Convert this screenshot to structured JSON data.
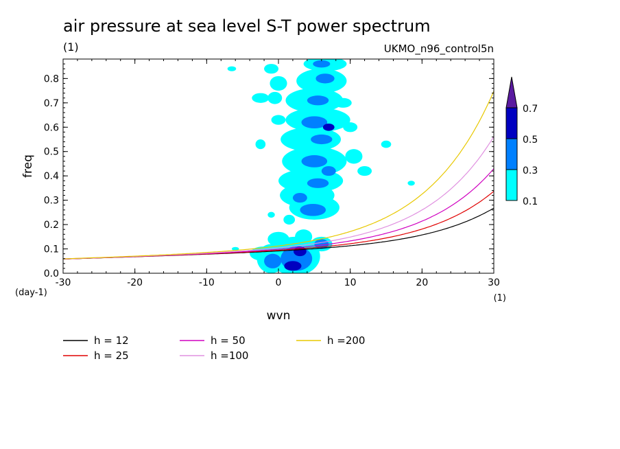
{
  "chart_data": {
    "type": "heatmap",
    "title": "air pressure at sea level S-T power spectrum",
    "units_label": "(1)",
    "dataset_label": "UKMO_n96_control5n",
    "xlabel": "wvn",
    "ylabel": "freq",
    "x_unit_label": "(1)",
    "y_unit_label": "(day-1)",
    "xlim": [
      -30,
      30
    ],
    "ylim": [
      0.0,
      0.88
    ],
    "x_ticks": [
      "-30",
      "-20",
      "-10",
      "0",
      "10",
      "20",
      "30"
    ],
    "x_tick_values": [
      -30,
      -20,
      -10,
      0,
      10,
      20,
      30
    ],
    "y_ticks": [
      "0.0",
      "0.1",
      "0.2",
      "0.3",
      "0.4",
      "0.5",
      "0.6",
      "0.7",
      "0.8"
    ],
    "y_tick_values": [
      0.0,
      0.1,
      0.2,
      0.3,
      0.4,
      0.5,
      0.6,
      0.7,
      0.8
    ],
    "colorbar": {
      "levels": [
        "0.1",
        "0.3",
        "0.5",
        "0.7"
      ],
      "level_values": [
        0.1,
        0.3,
        0.5,
        0.7
      ],
      "colors": [
        "#00ffff",
        "#0080ff",
        "#0000c0",
        "#5a1aa0"
      ]
    },
    "contour_blobs": [
      {
        "x": 2.0,
        "y": 0.03,
        "rx": 1.2,
        "ry": 0.02,
        "level": 3
      },
      {
        "x": 2.5,
        "y": 0.06,
        "rx": 2.2,
        "ry": 0.05,
        "level": 2
      },
      {
        "x": 2.3,
        "y": 0.07,
        "rx": 3.5,
        "ry": 0.08,
        "level": 1
      },
      {
        "x": 3.0,
        "y": 0.09,
        "rx": 0.9,
        "ry": 0.02,
        "level": 3
      },
      {
        "x": -0.8,
        "y": 0.05,
        "rx": 1.2,
        "ry": 0.03,
        "level": 2
      },
      {
        "x": -1.0,
        "y": 0.06,
        "rx": 2.0,
        "ry": 0.06,
        "level": 1
      },
      {
        "x": 6.0,
        "y": 0.12,
        "rx": 1.0,
        "ry": 0.02,
        "level": 2
      },
      {
        "x": 6.0,
        "y": 0.12,
        "rx": 1.5,
        "ry": 0.03,
        "level": 1
      },
      {
        "x": 3.5,
        "y": 0.15,
        "rx": 1.2,
        "ry": 0.03,
        "level": 1
      },
      {
        "x": -2.0,
        "y": 0.08,
        "rx": 2.0,
        "ry": 0.03,
        "level": 1
      },
      {
        "x": 0.0,
        "y": 0.14,
        "rx": 1.5,
        "ry": 0.03,
        "level": 1
      },
      {
        "x": 5.0,
        "y": 0.27,
        "rx": 3.5,
        "ry": 0.05,
        "level": 1
      },
      {
        "x": 4.8,
        "y": 0.26,
        "rx": 1.8,
        "ry": 0.025,
        "level": 2
      },
      {
        "x": 4.0,
        "y": 0.32,
        "rx": 3.8,
        "ry": 0.05,
        "level": 1
      },
      {
        "x": 3.0,
        "y": 0.31,
        "rx": 1.0,
        "ry": 0.02,
        "level": 2
      },
      {
        "x": 4.5,
        "y": 0.38,
        "rx": 4.5,
        "ry": 0.05,
        "level": 1
      },
      {
        "x": 5.5,
        "y": 0.37,
        "rx": 1.5,
        "ry": 0.02,
        "level": 2
      },
      {
        "x": 5.0,
        "y": 0.46,
        "rx": 4.5,
        "ry": 0.06,
        "level": 1
      },
      {
        "x": 5.0,
        "y": 0.46,
        "rx": 1.8,
        "ry": 0.025,
        "level": 2
      },
      {
        "x": 7.0,
        "y": 0.42,
        "rx": 1.0,
        "ry": 0.02,
        "level": 2
      },
      {
        "x": 4.5,
        "y": 0.55,
        "rx": 4.2,
        "ry": 0.05,
        "level": 1
      },
      {
        "x": 6.0,
        "y": 0.55,
        "rx": 1.5,
        "ry": 0.02,
        "level": 2
      },
      {
        "x": 5.5,
        "y": 0.63,
        "rx": 4.5,
        "ry": 0.05,
        "level": 1
      },
      {
        "x": 5.0,
        "y": 0.62,
        "rx": 1.8,
        "ry": 0.025,
        "level": 2
      },
      {
        "x": 7.0,
        "y": 0.6,
        "rx": 0.8,
        "ry": 0.015,
        "level": 3
      },
      {
        "x": 5.0,
        "y": 0.71,
        "rx": 4.0,
        "ry": 0.05,
        "level": 1
      },
      {
        "x": 5.5,
        "y": 0.71,
        "rx": 1.5,
        "ry": 0.02,
        "level": 2
      },
      {
        "x": 6.0,
        "y": 0.79,
        "rx": 3.5,
        "ry": 0.05,
        "level": 1
      },
      {
        "x": 6.5,
        "y": 0.8,
        "rx": 1.3,
        "ry": 0.02,
        "level": 2
      },
      {
        "x": 6.5,
        "y": 0.86,
        "rx": 3.0,
        "ry": 0.03,
        "level": 1
      },
      {
        "x": 6.0,
        "y": 0.86,
        "rx": 1.2,
        "ry": 0.015,
        "level": 2
      },
      {
        "x": 0.0,
        "y": 0.78,
        "rx": 1.2,
        "ry": 0.03,
        "level": 1
      },
      {
        "x": -0.5,
        "y": 0.72,
        "rx": 1.0,
        "ry": 0.025,
        "level": 1
      },
      {
        "x": -2.5,
        "y": 0.72,
        "rx": 1.2,
        "ry": 0.02,
        "level": 1
      },
      {
        "x": -1.0,
        "y": 0.84,
        "rx": 1.0,
        "ry": 0.02,
        "level": 1
      },
      {
        "x": -6.5,
        "y": 0.84,
        "rx": 0.6,
        "ry": 0.01,
        "level": 1
      },
      {
        "x": -2.5,
        "y": 0.53,
        "rx": 0.7,
        "ry": 0.02,
        "level": 1
      },
      {
        "x": 0.0,
        "y": 0.63,
        "rx": 1.0,
        "ry": 0.02,
        "level": 1
      },
      {
        "x": 10.5,
        "y": 0.48,
        "rx": 1.2,
        "ry": 0.03,
        "level": 1
      },
      {
        "x": 12.0,
        "y": 0.42,
        "rx": 1.0,
        "ry": 0.02,
        "level": 1
      },
      {
        "x": 15.0,
        "y": 0.53,
        "rx": 0.7,
        "ry": 0.015,
        "level": 1
      },
      {
        "x": 10.0,
        "y": 0.6,
        "rx": 1.0,
        "ry": 0.02,
        "level": 1
      },
      {
        "x": 9.0,
        "y": 0.7,
        "rx": 1.2,
        "ry": 0.02,
        "level": 1
      },
      {
        "x": 18.5,
        "y": 0.37,
        "rx": 0.5,
        "ry": 0.01,
        "level": 1
      },
      {
        "x": 1.5,
        "y": 0.22,
        "rx": 0.8,
        "ry": 0.02,
        "level": 1
      },
      {
        "x": -1.0,
        "y": 0.24,
        "rx": 0.5,
        "ry": 0.012,
        "level": 1
      },
      {
        "x": -6.0,
        "y": 0.1,
        "rx": 0.5,
        "ry": 0.008,
        "level": 1
      }
    ],
    "series": [
      {
        "name": "h = 12",
        "color": "#000000",
        "h": 12
      },
      {
        "name": "h = 25",
        "color": "#e00000",
        "h": 25
      },
      {
        "name": "h = 50",
        "color": "#d000c0",
        "h": 50
      },
      {
        "name": "h =100",
        "color": "#e090e0",
        "h": 100
      },
      {
        "name": "h =200",
        "color": "#e8c800",
        "h": 200
      }
    ]
  }
}
